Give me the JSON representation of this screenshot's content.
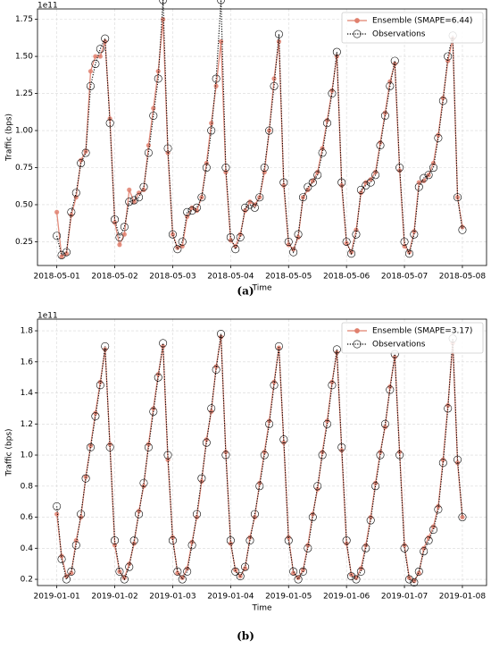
{
  "chart_data": [
    {
      "type": "line",
      "caption": "(a)",
      "xlabel": "Time",
      "ylabel": "Traffic (bps)",
      "y_offset_text": "1e11",
      "xlim": [
        "2018-04-30 16:00",
        "2018-05-08 10:00"
      ],
      "xticks": [
        "2018-05-01",
        "2018-05-02",
        "2018-05-03",
        "2018-05-04",
        "2018-05-05",
        "2018-05-06",
        "2018-05-07",
        "2018-05-08"
      ],
      "ylim": [
        0.09,
        1.82
      ],
      "yticks": [
        0.25,
        {
          "value": 0.5,
          "label": "0.50"
        },
        0.75,
        {
          "value": 1,
          "label": "1.00"
        },
        1.25,
        {
          "value": 1.5,
          "label": "1.50"
        },
        1.75
      ],
      "grid": true,
      "legend": "upper right",
      "x": [
        "2018-05-01 00:00",
        "2018-05-01 02:00",
        "2018-05-01 04:00",
        "2018-05-01 06:00",
        "2018-05-01 08:00",
        "2018-05-01 10:00",
        "2018-05-01 12:00",
        "2018-05-01 14:00",
        "2018-05-01 16:00",
        "2018-05-01 18:00",
        "2018-05-01 20:00",
        "2018-05-01 22:00",
        "2018-05-02 00:00",
        "2018-05-02 02:00",
        "2018-05-02 04:00",
        "2018-05-02 06:00",
        "2018-05-02 08:00",
        "2018-05-02 10:00",
        "2018-05-02 12:00",
        "2018-05-02 14:00",
        "2018-05-02 16:00",
        "2018-05-02 18:00",
        "2018-05-02 20:00",
        "2018-05-02 22:00",
        "2018-05-03 00:00",
        "2018-05-03 02:00",
        "2018-05-03 04:00",
        "2018-05-03 06:00",
        "2018-05-03 08:00",
        "2018-05-03 10:00",
        "2018-05-03 12:00",
        "2018-05-03 14:00",
        "2018-05-03 16:00",
        "2018-05-03 18:00",
        "2018-05-03 20:00",
        "2018-05-03 22:00",
        "2018-05-04 00:00",
        "2018-05-04 02:00",
        "2018-05-04 04:00",
        "2018-05-04 06:00",
        "2018-05-04 08:00",
        "2018-05-04 10:00",
        "2018-05-04 12:00",
        "2018-05-04 14:00",
        "2018-05-04 16:00",
        "2018-05-04 18:00",
        "2018-05-04 20:00",
        "2018-05-04 22:00",
        "2018-05-05 00:00",
        "2018-05-05 02:00",
        "2018-05-05 04:00",
        "2018-05-05 06:00",
        "2018-05-05 08:00",
        "2018-05-05 10:00",
        "2018-05-05 12:00",
        "2018-05-05 14:00",
        "2018-05-05 16:00",
        "2018-05-05 18:00",
        "2018-05-05 20:00",
        "2018-05-05 22:00",
        "2018-05-06 00:00",
        "2018-05-06 02:00",
        "2018-05-06 04:00",
        "2018-05-06 06:00",
        "2018-05-06 08:00",
        "2018-05-06 10:00",
        "2018-05-06 12:00",
        "2018-05-06 14:00",
        "2018-05-06 16:00",
        "2018-05-06 18:00",
        "2018-05-06 20:00",
        "2018-05-06 22:00",
        "2018-05-07 00:00",
        "2018-05-07 02:00",
        "2018-05-07 04:00",
        "2018-05-07 06:00",
        "2018-05-07 08:00",
        "2018-05-07 10:00",
        "2018-05-07 12:00",
        "2018-05-07 14:00",
        "2018-05-07 16:00",
        "2018-05-07 18:00",
        "2018-05-07 20:00",
        "2018-05-07 22:00",
        "2018-05-08 00:00"
      ],
      "series": [
        {
          "name": "Ensemble (SMAPE=6.44)",
          "color": "#e0806e",
          "linestyle": "solid",
          "marker_fill": true,
          "values": [
            0.45,
            0.15,
            0.17,
            0.43,
            0.55,
            0.8,
            0.86,
            1.4,
            1.5,
            1.5,
            1.6,
            1.08,
            0.38,
            0.23,
            0.3,
            0.6,
            0.52,
            0.58,
            0.6,
            0.9,
            1.15,
            1.4,
            1.75,
            0.85,
            0.3,
            0.21,
            0.22,
            0.42,
            0.48,
            0.46,
            0.55,
            0.78,
            1.05,
            1.3,
            1.6,
            0.72,
            0.26,
            0.22,
            0.3,
            0.46,
            0.52,
            0.5,
            0.55,
            0.72,
            1.0,
            1.35,
            1.6,
            0.63,
            0.23,
            0.2,
            0.28,
            0.55,
            0.6,
            0.66,
            0.72,
            0.88,
            1.07,
            1.27,
            1.5,
            0.63,
            0.24,
            0.18,
            0.33,
            0.58,
            0.65,
            0.67,
            0.72,
            0.92,
            1.12,
            1.33,
            1.45,
            0.73,
            0.22,
            0.18,
            0.32,
            0.65,
            0.66,
            0.7,
            0.78,
            0.97,
            1.22,
            1.47,
            1.62,
            0.55,
            0.35
          ]
        },
        {
          "name": "Observations",
          "color": "#000000",
          "linestyle": "dotted",
          "marker_fill": false,
          "values": [
            0.29,
            0.16,
            0.18,
            0.45,
            0.58,
            0.78,
            0.85,
            1.3,
            1.45,
            1.55,
            1.62,
            1.05,
            0.4,
            0.28,
            0.35,
            0.52,
            0.53,
            0.55,
            0.62,
            0.85,
            1.1,
            1.35,
            1.88,
            0.88,
            0.3,
            0.2,
            0.25,
            0.45,
            0.46,
            0.48,
            0.55,
            0.75,
            1.0,
            1.35,
            1.88,
            0.75,
            0.28,
            0.2,
            0.28,
            0.48,
            0.5,
            0.48,
            0.55,
            0.75,
            1.0,
            1.3,
            1.65,
            0.65,
            0.25,
            0.18,
            0.3,
            0.55,
            0.62,
            0.65,
            0.7,
            0.85,
            1.05,
            1.25,
            1.53,
            0.65,
            0.25,
            0.17,
            0.3,
            0.6,
            0.63,
            0.65,
            0.7,
            0.9,
            1.1,
            1.3,
            1.47,
            0.75,
            0.25,
            0.17,
            0.3,
            0.62,
            0.68,
            0.7,
            0.75,
            0.95,
            1.2,
            1.5,
            1.64,
            0.55,
            0.33
          ]
        }
      ]
    },
    {
      "type": "line",
      "caption": "(b)",
      "xlabel": "Time",
      "ylabel": "Traffic (bps)",
      "y_offset_text": "1e11",
      "xlim": [
        "2018-12-31 16:00",
        "2019-01-08 10:00"
      ],
      "xticks": [
        "2019-01-01",
        "2019-01-02",
        "2019-01-03",
        "2019-01-04",
        "2019-01-05",
        "2019-01-06",
        "2019-01-07",
        "2019-01-08"
      ],
      "ylim": [
        0.16,
        1.875
      ],
      "yticks": [
        0.2,
        0.4,
        0.6,
        0.8,
        {
          "value": 1,
          "label": "1.0"
        },
        1.2,
        1.4,
        1.6,
        1.8
      ],
      "grid": true,
      "legend": "upper right",
      "x": [
        "2019-01-01 00:00",
        "2019-01-01 02:00",
        "2019-01-01 04:00",
        "2019-01-01 06:00",
        "2019-01-01 08:00",
        "2019-01-01 10:00",
        "2019-01-01 12:00",
        "2019-01-01 14:00",
        "2019-01-01 16:00",
        "2019-01-01 18:00",
        "2019-01-01 20:00",
        "2019-01-01 22:00",
        "2019-01-02 00:00",
        "2019-01-02 02:00",
        "2019-01-02 04:00",
        "2019-01-02 06:00",
        "2019-01-02 08:00",
        "2019-01-02 10:00",
        "2019-01-02 12:00",
        "2019-01-02 14:00",
        "2019-01-02 16:00",
        "2019-01-02 18:00",
        "2019-01-02 20:00",
        "2019-01-02 22:00",
        "2019-01-03 00:00",
        "2019-01-03 02:00",
        "2019-01-03 04:00",
        "2019-01-03 06:00",
        "2019-01-03 08:00",
        "2019-01-03 10:00",
        "2019-01-03 12:00",
        "2019-01-03 14:00",
        "2019-01-03 16:00",
        "2019-01-03 18:00",
        "2019-01-03 20:00",
        "2019-01-03 22:00",
        "2019-01-04 00:00",
        "2019-01-04 02:00",
        "2019-01-04 04:00",
        "2019-01-04 06:00",
        "2019-01-04 08:00",
        "2019-01-04 10:00",
        "2019-01-04 12:00",
        "2019-01-04 14:00",
        "2019-01-04 16:00",
        "2019-01-04 18:00",
        "2019-01-04 20:00",
        "2019-01-04 22:00",
        "2019-01-05 00:00",
        "2019-01-05 02:00",
        "2019-01-05 04:00",
        "2019-01-05 06:00",
        "2019-01-05 08:00",
        "2019-01-05 10:00",
        "2019-01-05 12:00",
        "2019-01-05 14:00",
        "2019-01-05 16:00",
        "2019-01-05 18:00",
        "2019-01-05 20:00",
        "2019-01-05 22:00",
        "2019-01-06 00:00",
        "2019-01-06 02:00",
        "2019-01-06 04:00",
        "2019-01-06 06:00",
        "2019-01-06 08:00",
        "2019-01-06 10:00",
        "2019-01-06 12:00",
        "2019-01-06 14:00",
        "2019-01-06 16:00",
        "2019-01-06 18:00",
        "2019-01-06 20:00",
        "2019-01-06 22:00",
        "2019-01-07 00:00",
        "2019-01-07 02:00",
        "2019-01-07 04:00",
        "2019-01-07 06:00",
        "2019-01-07 08:00",
        "2019-01-07 10:00",
        "2019-01-07 12:00",
        "2019-01-07 14:00",
        "2019-01-07 16:00",
        "2019-01-07 18:00",
        "2019-01-07 20:00",
        "2019-01-07 22:00",
        "2019-01-08 00:00"
      ],
      "series": [
        {
          "name": "Ensemble (SMAPE=3.17)",
          "color": "#e0806e",
          "linestyle": "solid",
          "marker_fill": true,
          "values": [
            0.62,
            0.35,
            0.22,
            0.24,
            0.45,
            0.6,
            0.86,
            1.06,
            1.27,
            1.47,
            1.68,
            1.07,
            0.42,
            0.25,
            0.21,
            0.3,
            0.43,
            0.64,
            0.8,
            1.07,
            1.3,
            1.52,
            1.7,
            0.97,
            0.47,
            0.24,
            0.21,
            0.27,
            0.44,
            0.6,
            0.83,
            1.1,
            1.28,
            1.57,
            1.76,
            1.02,
            0.43,
            0.26,
            0.22,
            0.27,
            0.47,
            0.6,
            0.82,
            1.02,
            1.22,
            1.47,
            1.69,
            1.08,
            0.47,
            0.24,
            0.21,
            0.26,
            0.42,
            0.62,
            0.78,
            1.02,
            1.22,
            1.47,
            1.66,
            1.03,
            0.43,
            0.23,
            0.21,
            0.27,
            0.42,
            0.6,
            0.82,
            1.02,
            1.18,
            1.44,
            1.63,
            1.02,
            0.42,
            0.21,
            0.19,
            0.24,
            0.4,
            0.47,
            0.54,
            0.67,
            0.97,
            1.32,
            1.72,
            0.95,
            0.6
          ]
        },
        {
          "name": "Observations",
          "color": "#000000",
          "linestyle": "dotted",
          "marker_fill": false,
          "values": [
            0.67,
            0.33,
            0.2,
            0.25,
            0.42,
            0.62,
            0.85,
            1.05,
            1.25,
            1.45,
            1.7,
            1.05,
            0.45,
            0.25,
            0.2,
            0.28,
            0.45,
            0.62,
            0.82,
            1.05,
            1.28,
            1.5,
            1.72,
            1.0,
            0.45,
            0.25,
            0.2,
            0.25,
            0.42,
            0.62,
            0.85,
            1.08,
            1.3,
            1.55,
            1.78,
            1.0,
            0.45,
            0.25,
            0.22,
            0.28,
            0.45,
            0.62,
            0.8,
            1.0,
            1.2,
            1.45,
            1.7,
            1.1,
            0.45,
            0.25,
            0.2,
            0.25,
            0.4,
            0.6,
            0.8,
            1.0,
            1.2,
            1.45,
            1.68,
            1.05,
            0.45,
            0.22,
            0.2,
            0.25,
            0.4,
            0.58,
            0.8,
            1.0,
            1.2,
            1.42,
            1.65,
            1.0,
            0.4,
            0.2,
            0.18,
            0.25,
            0.38,
            0.45,
            0.52,
            0.65,
            0.95,
            1.3,
            1.75,
            0.97,
            0.6
          ]
        }
      ]
    }
  ]
}
